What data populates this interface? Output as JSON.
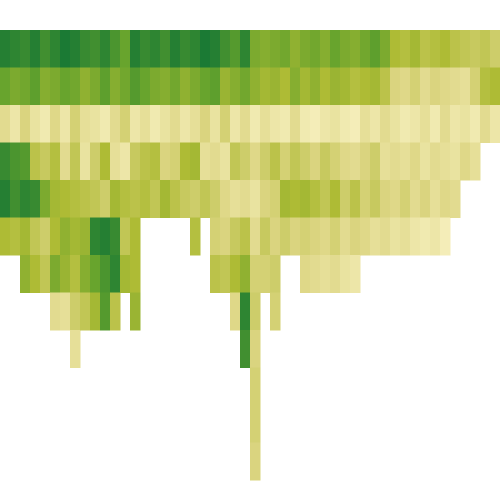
{
  "chart_data": {
    "type": "heatmap",
    "zlim": [
      0,
      3
    ],
    "colorscale": [
      "#f7f1c0",
      "#ddd684",
      "#aebb35",
      "#63a22c",
      "#1b7a34"
    ],
    "values": [
      [
        2.9,
        2.2,
        0.6,
        2.7,
        2.9,
        1.5
      ],
      [
        2.8,
        2.0,
        0.3,
        2.5,
        2.6,
        1.4
      ],
      [
        2.7,
        2.1,
        0.8,
        2.4,
        2.8,
        1.6,
        1.8
      ],
      [
        2.9,
        2.3,
        0.4,
        1.3,
        2.7,
        1.2,
        1.5
      ],
      [
        2.6,
        1.9,
        0.2,
        1.1,
        2.0,
        1.0,
        1.2
      ],
      [
        2.8,
        2.0,
        0.7,
        1.4,
        1.6,
        1.5,
        2.0,
        0.6
      ],
      [
        3.0,
        2.2,
        0.3,
        0.6,
        1.5,
        1.8,
        1.7,
        0.5
      ],
      [
        2.9,
        2.1,
        0.9,
        1.2,
        1.4,
        1.6,
        1.4,
        1.0,
        0.5
      ],
      [
        2.7,
        1.8,
        0.5,
        0.4,
        1.3,
        1.7,
        1.9,
        1.2
      ],
      [
        2.6,
        2.0,
        0.4,
        1.0,
        1.2,
        2.8,
        2.2,
        1.6
      ],
      [
        2.8,
        2.3,
        0.2,
        1.5,
        1.0,
        2.9,
        2.5,
        2.4
      ],
      [
        2.5,
        1.9,
        0.6,
        0.5,
        1.6,
        2.7,
        2.8,
        1.3
      ],
      [
        2.2,
        2.1,
        0.9,
        0.3,
        1.4,
        1.2,
        1.6
      ],
      [
        2.9,
        2.4,
        0.3,
        1.1,
        1.3,
        1.5,
        1.5,
        1.7
      ],
      [
        2.7,
        2.2,
        0.5,
        1.3,
        1.4
      ],
      [
        2.8,
        2.0,
        0.2,
        1.4,
        1.2
      ],
      [
        2.6,
        1.9,
        0.4,
        0.8,
        1.6
      ],
      [
        2.9,
        2.1,
        0.6,
        0.9,
        1.3
      ],
      [
        2.7,
        1.8,
        0.3,
        1.5,
        1.1
      ],
      [
        2.8,
        2.0,
        0.5,
        1.6,
        1.0,
        1.4
      ],
      [
        3.0,
        2.2,
        0.8,
        0.5,
        1.2
      ],
      [
        2.9,
        2.3,
        0.4,
        0.6,
        1.0,
        0.9,
        1.3
      ],
      [
        2.6,
        1.7,
        0.9,
        0.4,
        0.7,
        0.8,
        1.2
      ],
      [
        2.4,
        1.9,
        0.3,
        1.2,
        0.5,
        1.1,
        1.5,
        0.7
      ],
      [
        2.8,
        2.1,
        0.6,
        1.0,
        0.6,
        1.3,
        1.8,
        2.8,
        2.6
      ],
      [
        2.0,
        1.8,
        0.2,
        0.7,
        0.4,
        0.6,
        0.9,
        1.0,
        0.8,
        0.9,
        0.9,
        0.8
      ],
      [
        1.9,
        1.6,
        0.5,
        1.0,
        0.8,
        1.1,
        0.9
      ],
      [
        2.0,
        1.7,
        0.3,
        1.3,
        0.9,
        0.8,
        1.0,
        0.9
      ],
      [
        2.1,
        1.5,
        0.2,
        0.9,
        1.6,
        1.0
      ],
      [
        1.8,
        1.9,
        0.6,
        1.2,
        1.5,
        0.8
      ],
      [
        2.0,
        1.6,
        0.2,
        1.0,
        1.6,
        0.9,
        0.7
      ],
      [
        2.1,
        1.8,
        0.1,
        0.8,
        1.4,
        0.8,
        0.6
      ],
      [
        1.9,
        1.5,
        0.3,
        1.1,
        1.2,
        0.7,
        0.5
      ],
      [
        2.2,
        1.7,
        0.4,
        0.9,
        1.5,
        0.9,
        0.6
      ],
      [
        2.0,
        1.6,
        0.2,
        0.7,
        1.0,
        0.6,
        0.4
      ],
      [
        1.9,
        1.4,
        0.1,
        0.6,
        1.3,
        0.8,
        0.3
      ],
      [
        2.1,
        1.5,
        0.5,
        0.8,
        0.9,
        0.7
      ],
      [
        2.3,
        1.6,
        0.3,
        1.0,
        1.1,
        0.5
      ],
      [
        2.0,
        1.3,
        0.6,
        0.5,
        0.8,
        0.6
      ],
      [
        1.5,
        0.8,
        0.4,
        0.6,
        0.7,
        0.4
      ],
      [
        1.4,
        0.7,
        0.2,
        0.5,
        0.9,
        0.5
      ],
      [
        1.6,
        0.9,
        0.3,
        0.7,
        0.6,
        0.3
      ],
      [
        1.3,
        0.6,
        0.5,
        0.4,
        0.8,
        0.2
      ],
      [
        1.4,
        0.8,
        0.2,
        0.6,
        0.5,
        0.3
      ],
      [
        1.5,
        0.7,
        0.6,
        0.5,
        0.7,
        0.1
      ],
      [
        1.3,
        0.6,
        0.3,
        0.4,
        0.6
      ],
      [
        1.2,
        0.5,
        0.4,
        0.7
      ],
      [
        1.1,
        0.9,
        0.2,
        0.5
      ],
      [
        1.2,
        1.4,
        0.6
      ],
      [
        1.0,
        1.5,
        0.3
      ]
    ]
  }
}
